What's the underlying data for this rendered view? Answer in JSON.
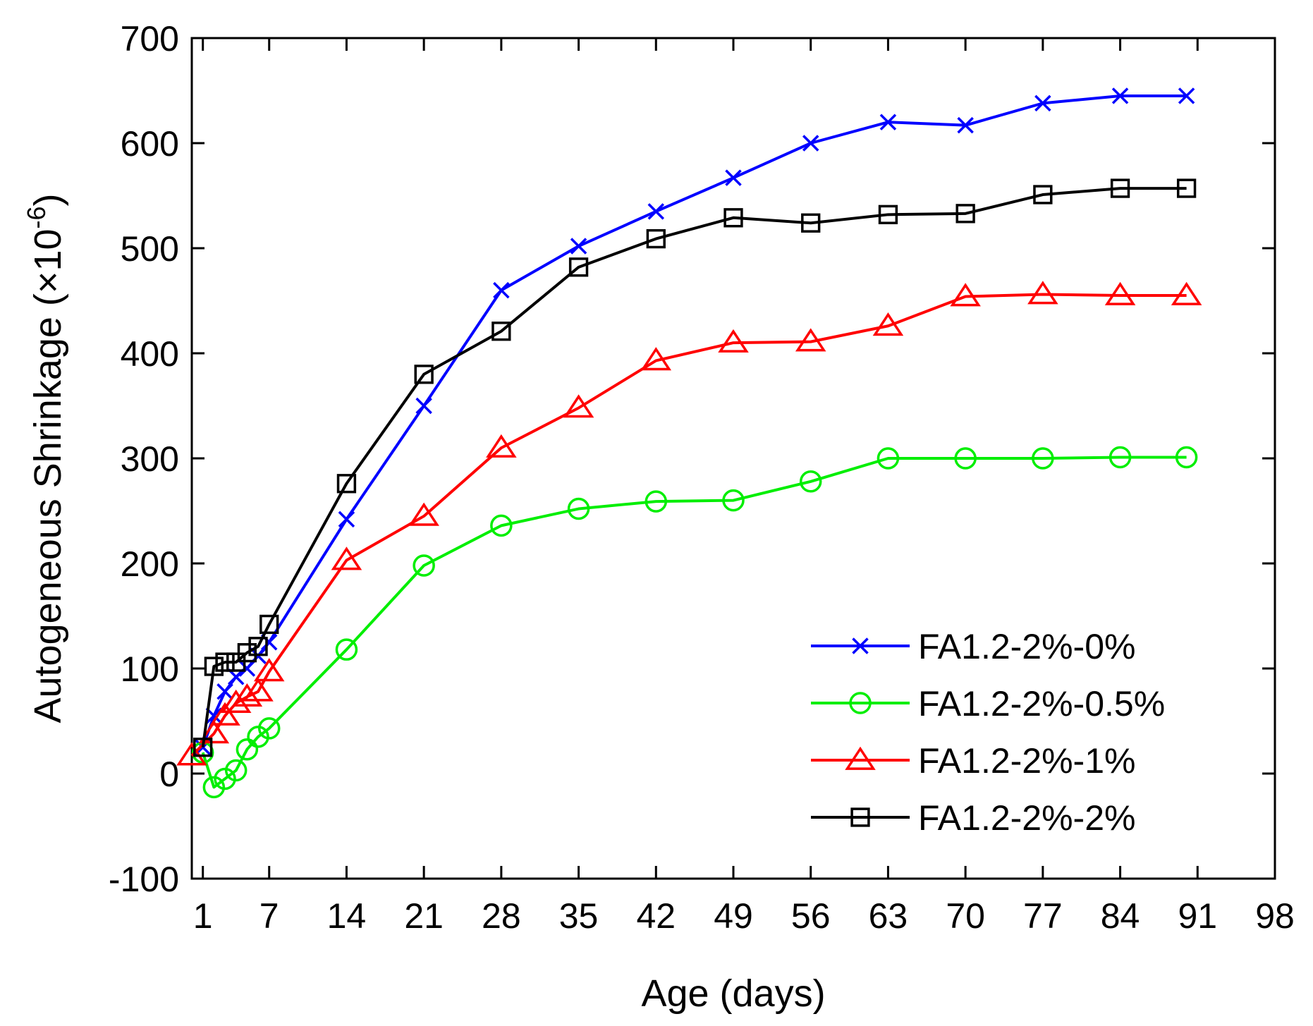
{
  "chart_data": {
    "type": "line",
    "title": "",
    "xlabel": "Age (days)",
    "ylabel": "Autogeneous Shrinkage (×10",
    "ylabel_exponent": "-6",
    "ylabel_close": ")",
    "xlim": [
      0,
      98
    ],
    "ylim": [
      -100,
      700
    ],
    "xticks": [
      1,
      7,
      14,
      21,
      28,
      35,
      42,
      49,
      56,
      63,
      70,
      77,
      84,
      91,
      98
    ],
    "yticks": [
      -100,
      0,
      100,
      200,
      300,
      400,
      500,
      600,
      700
    ],
    "legend_position": "bottom-right",
    "series": [
      {
        "name": "FA1.2-2%-0%",
        "color": "#0000ff",
        "marker": "x",
        "x": [
          1,
          2,
          3,
          4,
          5,
          6,
          7,
          14,
          21,
          28,
          35,
          42,
          49,
          56,
          63,
          70,
          77,
          84,
          90
        ],
        "y": [
          25,
          55,
          78,
          92,
          100,
          112,
          125,
          242,
          350,
          460,
          502,
          535,
          567,
          600,
          620,
          617,
          638,
          645,
          645
        ]
      },
      {
        "name": "FA1.2-2%-0.5%",
        "color": "#00ee00",
        "marker": "circle",
        "x": [
          1,
          2,
          3,
          4,
          5,
          6,
          7,
          14,
          21,
          28,
          35,
          42,
          49,
          56,
          63,
          70,
          77,
          84,
          90
        ],
        "y": [
          20,
          -13,
          -5,
          3,
          23,
          35,
          43,
          118,
          198,
          236,
          252,
          259,
          260,
          278,
          300,
          300,
          300,
          301,
          301
        ]
      },
      {
        "name": "FA1.2-2%-1%",
        "color": "#ff0000",
        "marker": "triangle",
        "x": [
          0,
          2,
          3,
          4,
          5,
          6,
          7,
          14,
          21,
          28,
          35,
          42,
          49,
          56,
          63,
          70,
          77,
          84,
          90
        ],
        "y": [
          17,
          38,
          55,
          67,
          73,
          78,
          97,
          203,
          245,
          310,
          348,
          393,
          410,
          411,
          426,
          454,
          456,
          455,
          455
        ]
      },
      {
        "name": "FA1.2-2%-2%",
        "color": "#000000",
        "marker": "square",
        "x": [
          1,
          2,
          3,
          4,
          5,
          6,
          7,
          14,
          21,
          28,
          35,
          42,
          49,
          56,
          63,
          70,
          77,
          84,
          90
        ],
        "y": [
          25,
          102,
          106,
          106,
          115,
          121,
          142,
          276,
          380,
          421,
          482,
          509,
          529,
          524,
          532,
          533,
          551,
          557,
          557
        ]
      }
    ]
  }
}
